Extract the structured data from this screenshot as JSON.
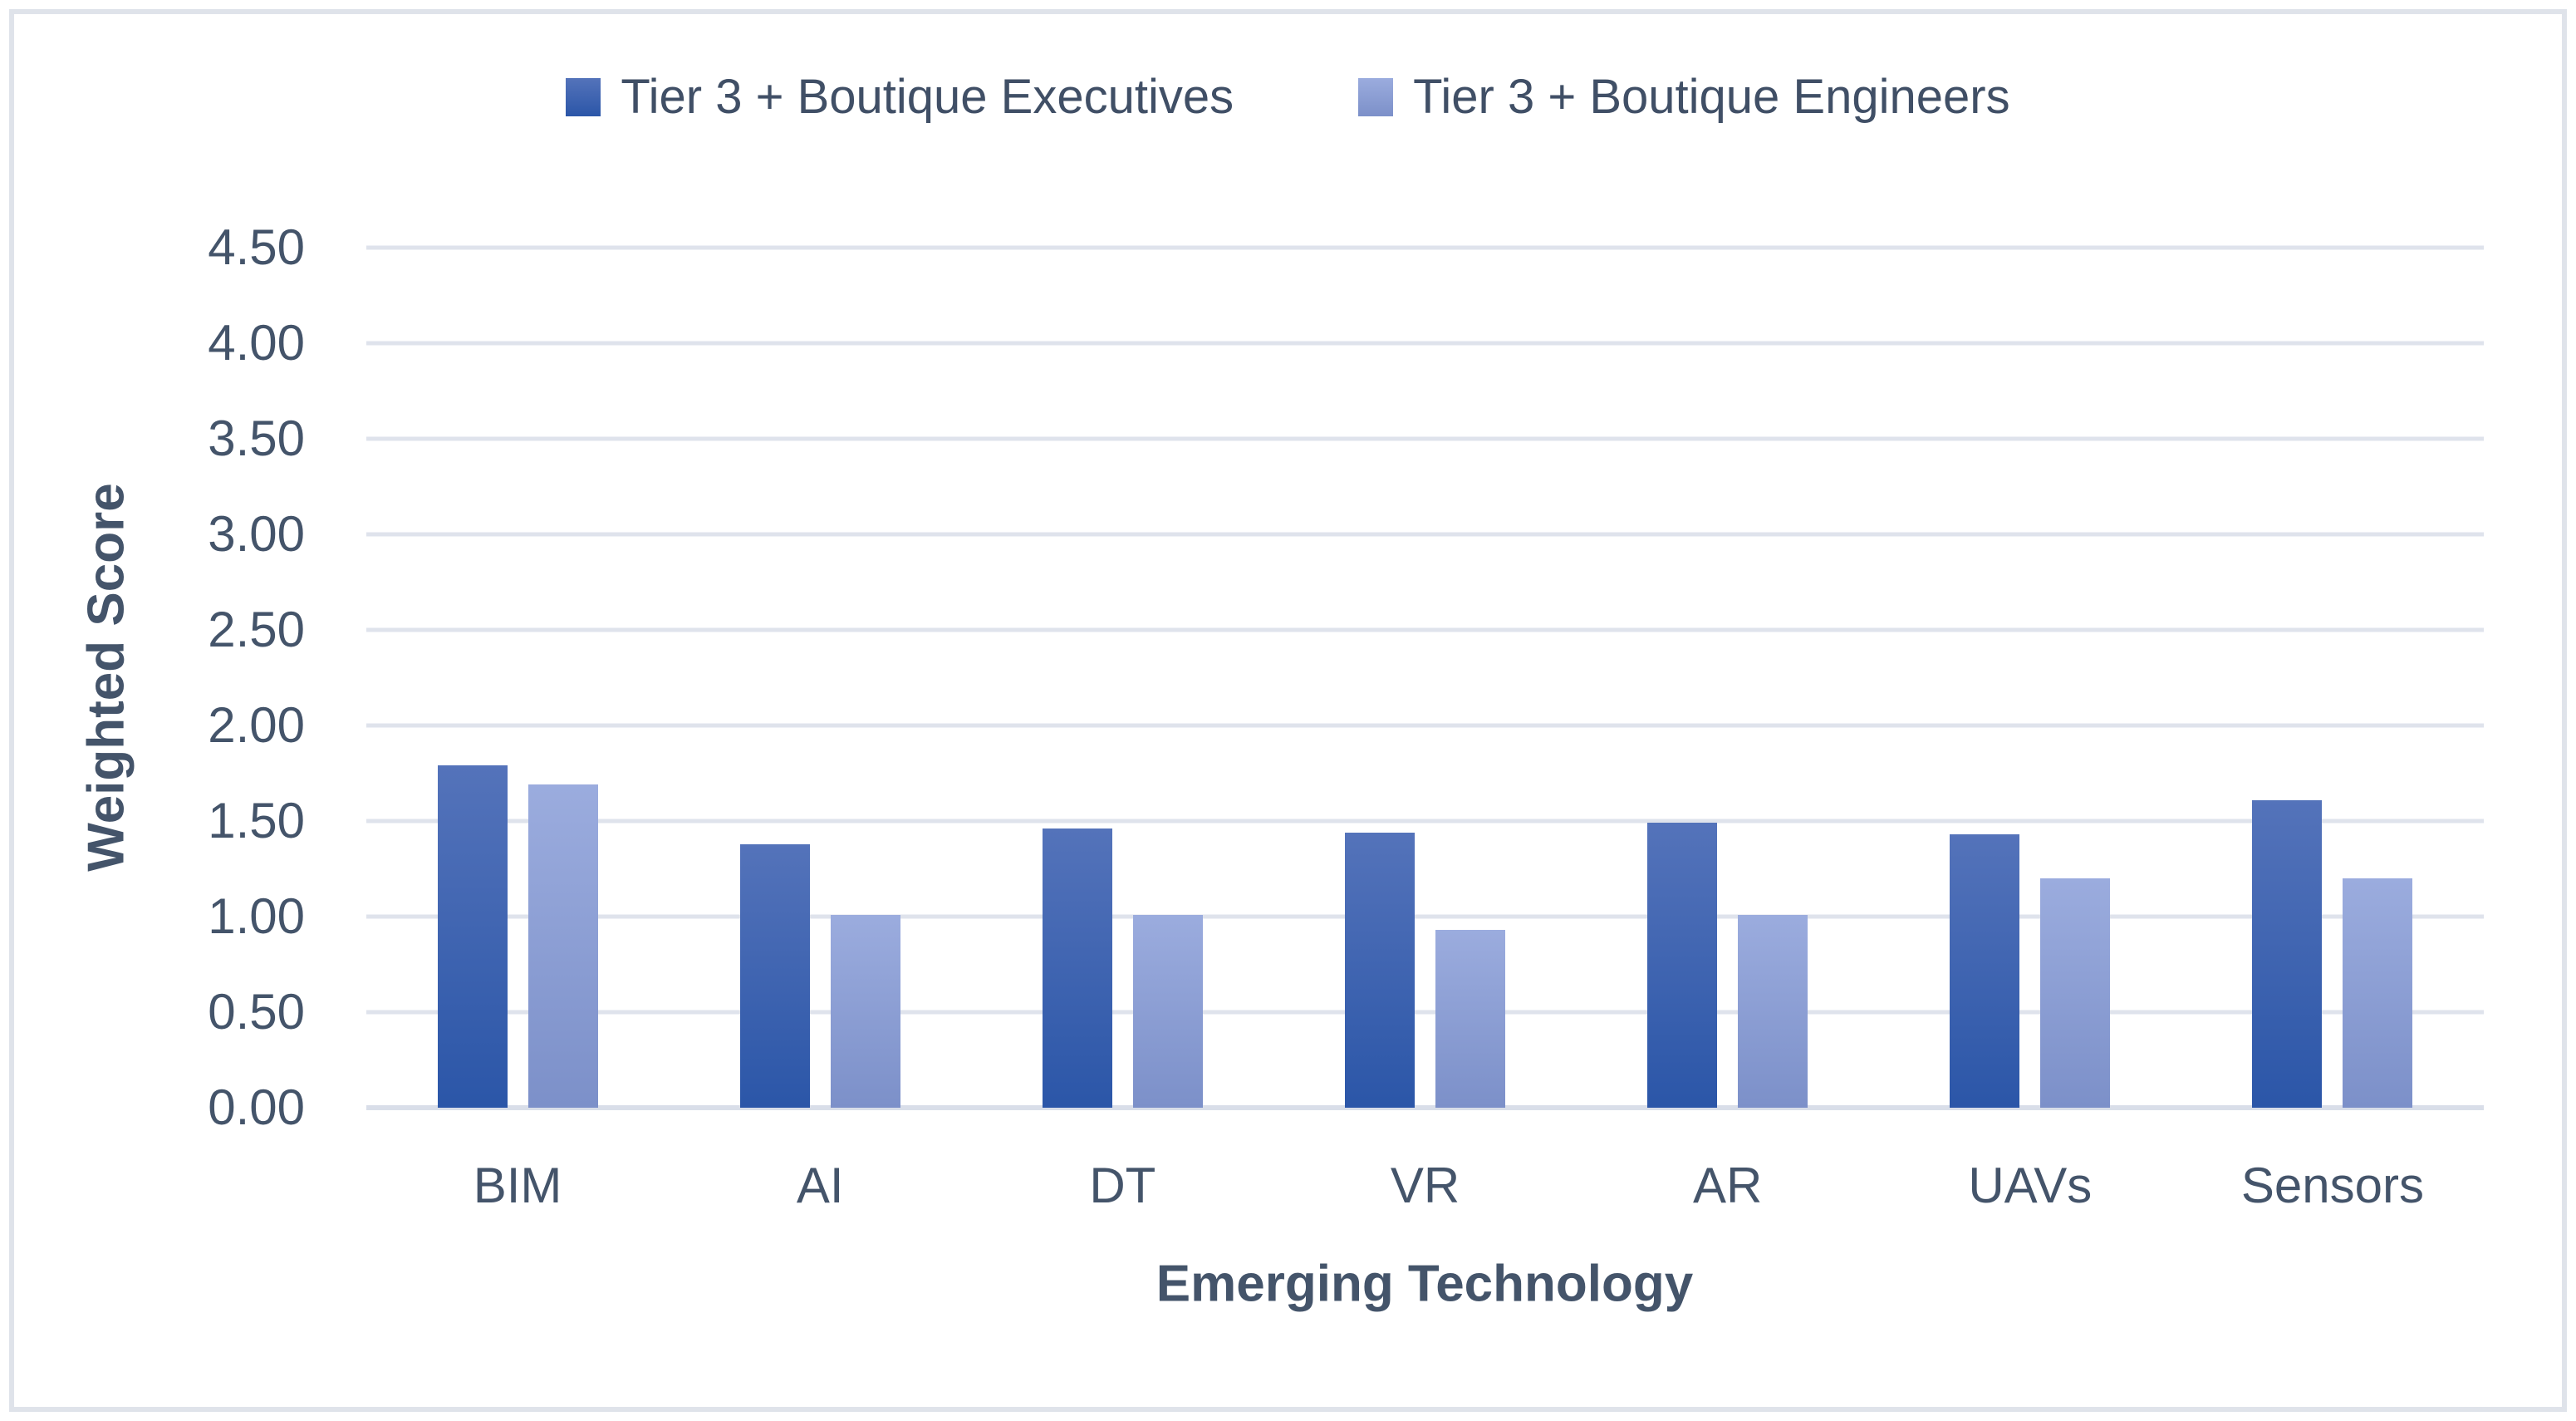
{
  "chart_data": {
    "type": "bar",
    "categories": [
      "BIM",
      "AI",
      "DT",
      "VR",
      "AR",
      "UAVs",
      "Sensors"
    ],
    "series": [
      {
        "name": "Tier 3 + Boutique Executives",
        "values": [
          1.79,
          1.38,
          1.46,
          1.44,
          1.49,
          1.43,
          1.61
        ],
        "color_top": "#5473BA",
        "color_bottom": "#2B56A8"
      },
      {
        "name": "Tier 3 + Boutique Engineers",
        "values": [
          1.69,
          1.01,
          1.01,
          0.93,
          1.01,
          1.2,
          1.2
        ],
        "color_top": "#9BACDE",
        "color_bottom": "#7C90C9"
      }
    ],
    "title": "",
    "xlabel": "Emerging Technology",
    "ylabel": "Weighted Score",
    "ylim": [
      0,
      4.5
    ],
    "ytick_step": 0.5,
    "ytick_decimals": 2,
    "grid": true,
    "legend_position": "top"
  },
  "colors": {
    "text": "#44546A",
    "gridline": "#dfe3ec",
    "axis_line": "#d9dee9",
    "frame_border": "#dfe3ea",
    "background": "#ffffff"
  }
}
